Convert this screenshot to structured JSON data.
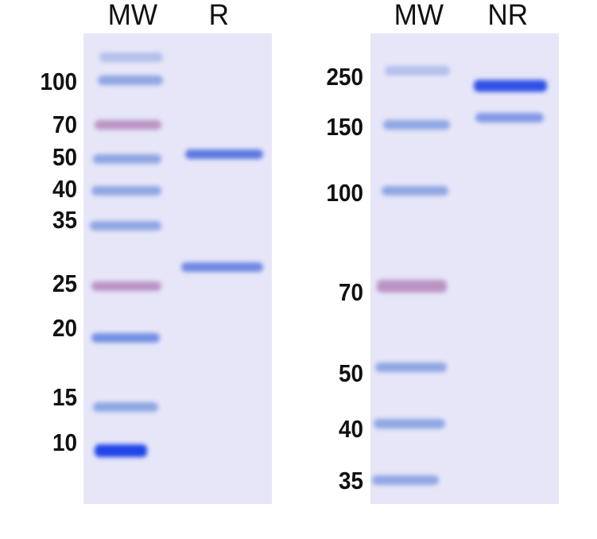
{
  "left_gel": {
    "lanes": [
      "MW",
      "R"
    ],
    "markers": [
      "100",
      "70",
      "50",
      "40",
      "35",
      "25",
      "20",
      "15",
      "10"
    ]
  },
  "right_gel": {
    "lanes": [
      "MW",
      "NR"
    ],
    "markers": [
      "250",
      "150",
      "100",
      "70",
      "50",
      "40",
      "35"
    ]
  },
  "colors": {
    "gel_background": "#e6e6f8",
    "marker_band": "#7f9be0",
    "pink_marker_band": "#b07fb8",
    "sample_band": "#5a78e0"
  }
}
